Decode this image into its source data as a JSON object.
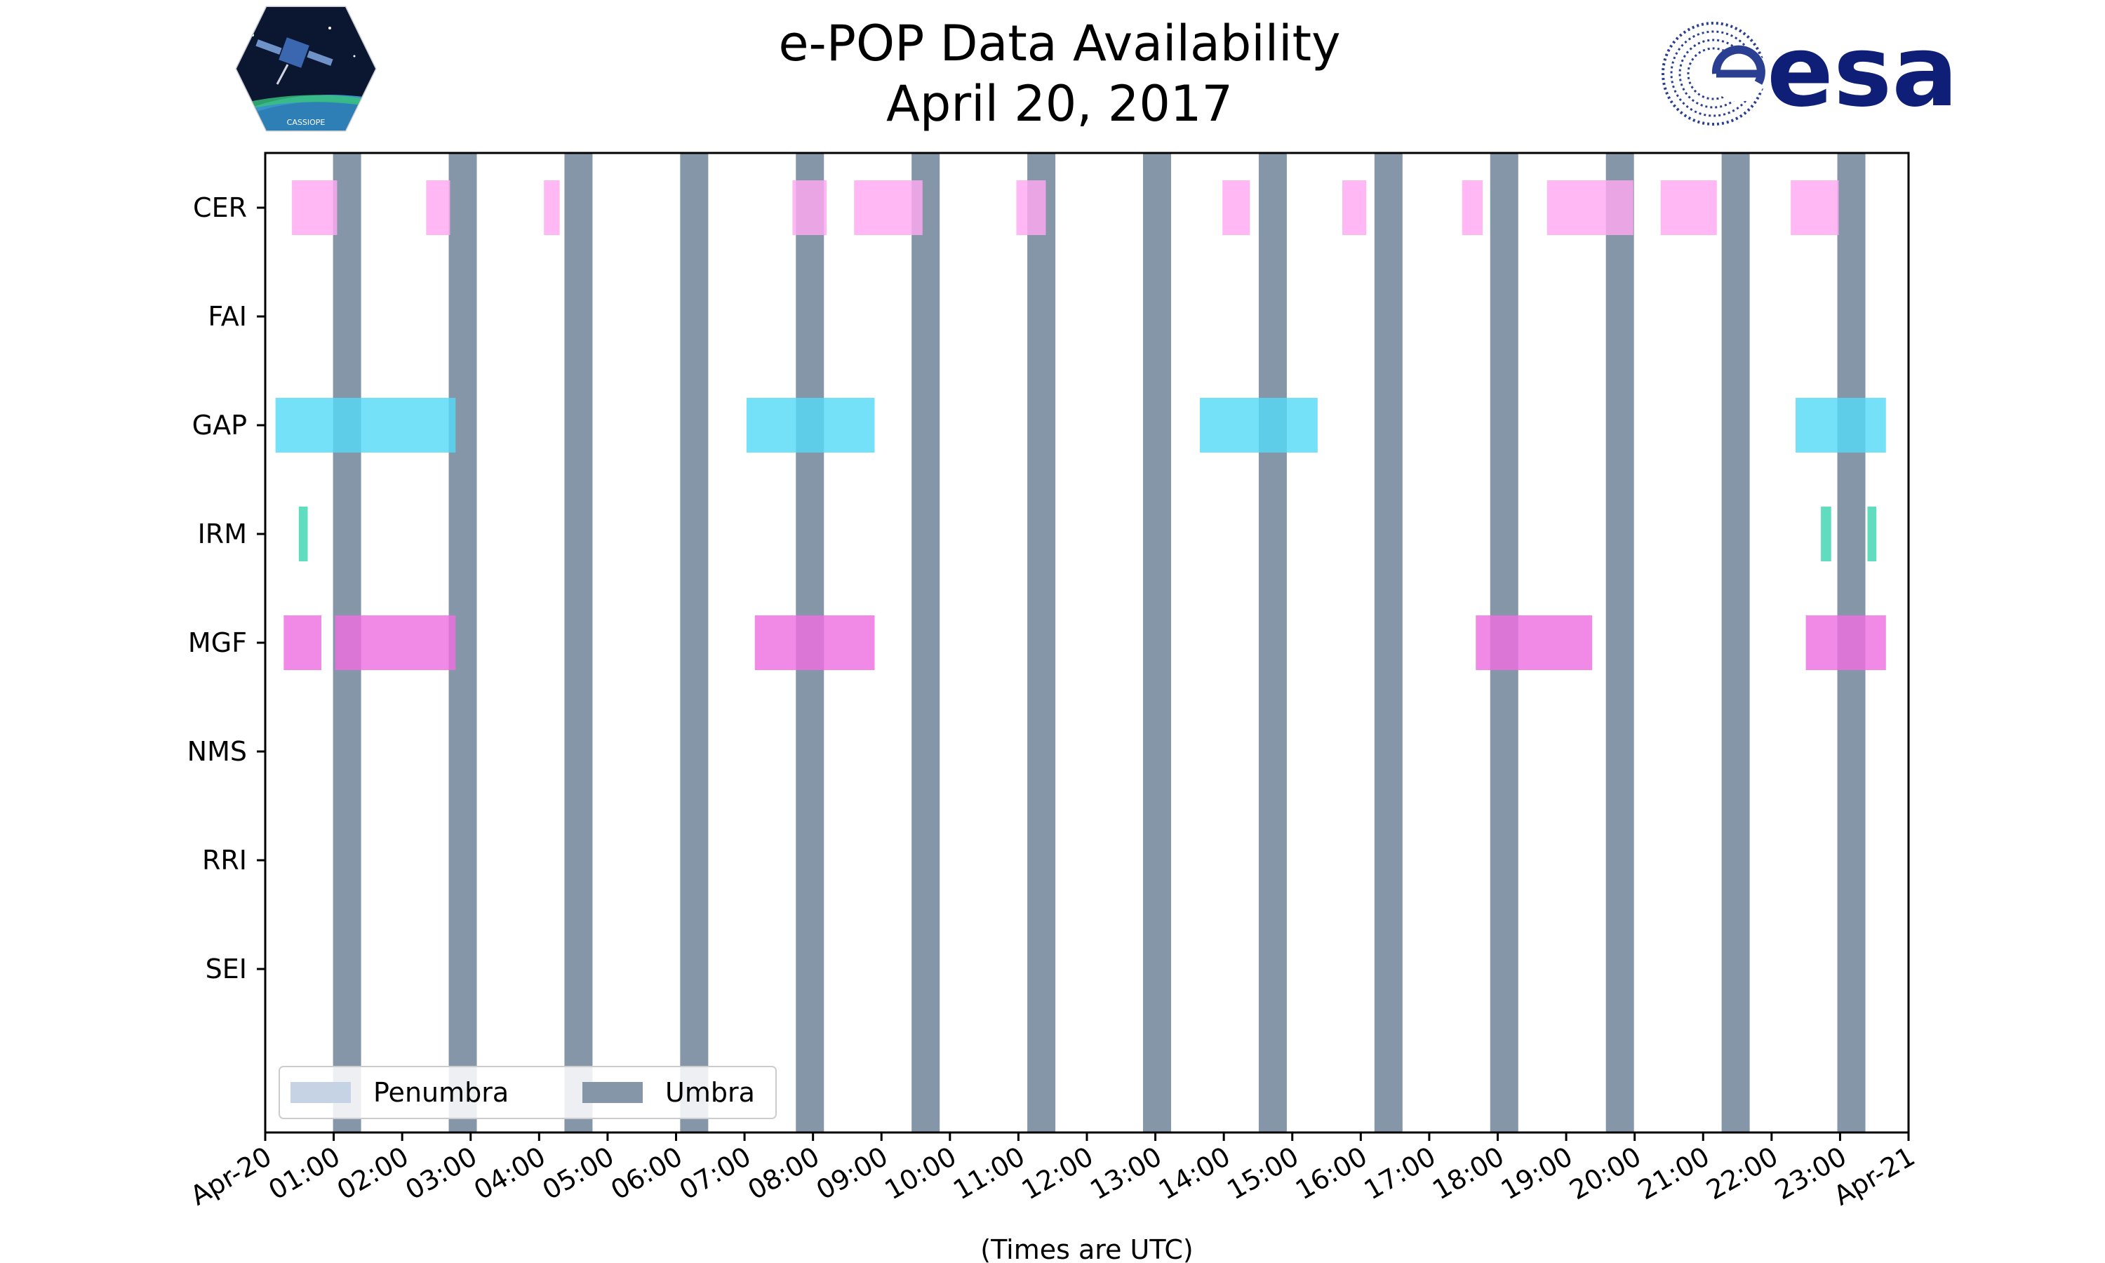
{
  "chart_data": {
    "type": "timeline",
    "title": [
      "e-POP Data Availability",
      "April 20, 2017"
    ],
    "xlabel": "(Times are UTC)",
    "ylabel": "",
    "xlim_hours": [
      0,
      24
    ],
    "x_tick_labels": [
      "Apr-20",
      "01:00",
      "02:00",
      "03:00",
      "04:00",
      "05:00",
      "06:00",
      "07:00",
      "08:00",
      "09:00",
      "10:00",
      "11:00",
      "12:00",
      "13:00",
      "14:00",
      "15:00",
      "16:00",
      "17:00",
      "18:00",
      "19:00",
      "20:00",
      "21:00",
      "22:00",
      "23:00",
      "Apr-21"
    ],
    "instruments": [
      "CER",
      "FAI",
      "GAP",
      "IRM",
      "MGF",
      "NMS",
      "RRI",
      "SEI"
    ],
    "legend": {
      "location": "lower-left",
      "entries": [
        {
          "label": "Penumbra",
          "color": "#c5d3e5"
        },
        {
          "label": "Umbra",
          "color": "#8596a8"
        }
      ]
    },
    "umbra_intervals_hours": [
      [
        0.99,
        1.4
      ],
      [
        2.68,
        3.09
      ],
      [
        4.37,
        4.78
      ],
      [
        6.06,
        6.47
      ],
      [
        7.75,
        8.16
      ],
      [
        9.44,
        9.85
      ],
      [
        11.13,
        11.54
      ],
      [
        12.82,
        13.23
      ],
      [
        14.51,
        14.92
      ],
      [
        16.2,
        16.61
      ],
      [
        17.89,
        18.3
      ],
      [
        19.58,
        19.99
      ],
      [
        21.27,
        21.68
      ],
      [
        22.96,
        23.37
      ]
    ],
    "series": [
      {
        "name": "CER",
        "color": "#ffa8f2",
        "intervals_hours": [
          [
            0.39,
            1.05
          ],
          [
            2.35,
            2.7
          ],
          [
            4.07,
            4.3
          ],
          [
            7.7,
            8.2
          ],
          [
            8.6,
            9.6
          ],
          [
            10.97,
            11.4
          ],
          [
            13.98,
            14.38
          ],
          [
            15.73,
            16.08
          ],
          [
            17.48,
            17.78
          ],
          [
            18.72,
            19.98
          ],
          [
            20.38,
            21.2
          ],
          [
            22.28,
            22.98
          ]
        ]
      },
      {
        "name": "FAI",
        "color": "#ffa8f2",
        "intervals_hours": []
      },
      {
        "name": "GAP",
        "color": "#55dbf6",
        "intervals_hours": [
          [
            0.15,
            2.78
          ],
          [
            7.03,
            8.9
          ],
          [
            13.65,
            15.37
          ],
          [
            22.35,
            23.67
          ]
        ]
      },
      {
        "name": "IRM",
        "color": "#3cd6b0",
        "intervals_hours": [
          [
            0.49,
            0.62
          ],
          [
            22.72,
            22.87
          ],
          [
            23.4,
            23.53
          ]
        ]
      },
      {
        "name": "MGF",
        "color": "#ee6fe2",
        "intervals_hours": [
          [
            0.27,
            0.82
          ],
          [
            1.02,
            2.78
          ],
          [
            7.15,
            8.9
          ],
          [
            17.68,
            19.38
          ],
          [
            22.5,
            23.67
          ]
        ]
      },
      {
        "name": "NMS",
        "color": "#ee6fe2",
        "intervals_hours": []
      },
      {
        "name": "RRI",
        "color": "#ee6fe2",
        "intervals_hours": []
      },
      {
        "name": "SEI",
        "color": "#ee6fe2",
        "intervals_hours": []
      }
    ]
  },
  "logos": {
    "left_badge_text": "CASSIOPE",
    "right_logo_text": "esa",
    "right_logo_color": "#0f1f78"
  }
}
